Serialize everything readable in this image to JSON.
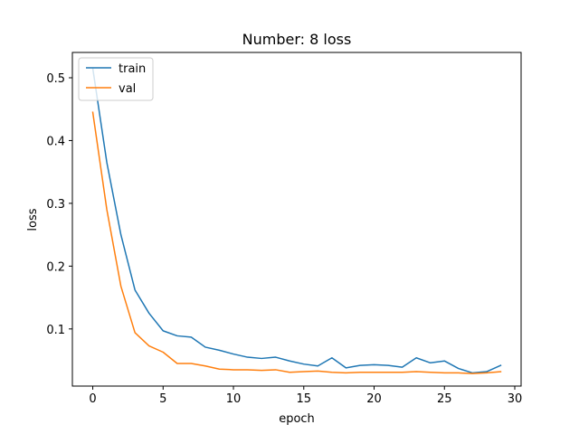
{
  "chart_data": {
    "type": "line",
    "title": "Number: 8 loss",
    "xlabel": "epoch",
    "ylabel": "loss",
    "xlim": [
      -1.45,
      30.45
    ],
    "ylim": [
      0.009,
      0.5403
    ],
    "xticks": [
      0,
      5,
      10,
      15,
      20,
      25,
      30
    ],
    "yticks": [
      0.1,
      0.2,
      0.3,
      0.4,
      0.5
    ],
    "ytick_labels": [
      "0.1",
      "0.2",
      "0.3",
      "0.4",
      "0.5"
    ],
    "grid": false,
    "legend_position": "top-left",
    "x": [
      0,
      1,
      2,
      3,
      4,
      5,
      6,
      7,
      8,
      9,
      10,
      11,
      12,
      13,
      14,
      15,
      16,
      17,
      18,
      19,
      20,
      21,
      22,
      23,
      24,
      25,
      26,
      27,
      28,
      29
    ],
    "series": [
      {
        "name": "train",
        "color": "#1f77b4",
        "values": [
          0.515,
          0.365,
          0.25,
          0.162,
          0.125,
          0.097,
          0.089,
          0.087,
          0.071,
          0.066,
          0.06,
          0.055,
          0.053,
          0.055,
          0.049,
          0.044,
          0.041,
          0.054,
          0.038,
          0.042,
          0.043,
          0.042,
          0.039,
          0.054,
          0.046,
          0.049,
          0.037,
          0.03,
          0.032,
          0.042
        ]
      },
      {
        "name": "val",
        "color": "#ff7f0e",
        "values": [
          0.445,
          0.29,
          0.168,
          0.094,
          0.073,
          0.063,
          0.045,
          0.045,
          0.041,
          0.036,
          0.035,
          0.035,
          0.034,
          0.035,
          0.031,
          0.032,
          0.033,
          0.031,
          0.03,
          0.031,
          0.031,
          0.031,
          0.031,
          0.032,
          0.031,
          0.03,
          0.03,
          0.029,
          0.03,
          0.032
        ]
      }
    ]
  }
}
